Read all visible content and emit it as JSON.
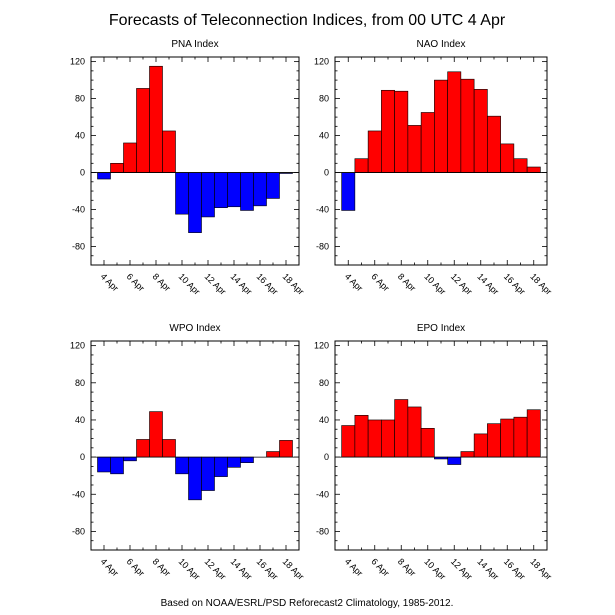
{
  "figure": {
    "title": "Forecasts of Teleconnection Indices, from 00 UTC 4 Apr",
    "footer": "Based on NOAA/ESRL/PSD Reforecast2 Climatology, 1985-2012.",
    "positive_color": "#ff0000",
    "negative_color": "#0000ff"
  },
  "chart_data": [
    {
      "type": "bar",
      "title": "PNA Index",
      "x": [
        4,
        5,
        6,
        7,
        8,
        9,
        10,
        11,
        12,
        13,
        14,
        15,
        16,
        17,
        18
      ],
      "x_tick_labels": [
        "4 Apr",
        "6 Apr",
        "8 Apr",
        "10 Apr",
        "12 Apr",
        "14 Apr",
        "16 Apr",
        "18 Apr"
      ],
      "values": [
        -7,
        10,
        32,
        91,
        115,
        45,
        -45,
        -65,
        -48,
        -38,
        -37,
        -41,
        -36,
        -28,
        -1
      ],
      "ylim": [
        -100,
        125
      ],
      "y_ticks": [
        -80,
        -40,
        0,
        40,
        80,
        120
      ],
      "grid": false
    },
    {
      "type": "bar",
      "title": "NAO Index",
      "x": [
        4,
        5,
        6,
        7,
        8,
        9,
        10,
        11,
        12,
        13,
        14,
        15,
        16,
        17,
        18
      ],
      "x_tick_labels": [
        "4 Apr",
        "6 Apr",
        "8 Apr",
        "10 Apr",
        "12 Apr",
        "14 Apr",
        "16 Apr",
        "18 Apr"
      ],
      "values": [
        -41,
        15,
        45,
        89,
        88,
        51,
        65,
        100,
        109,
        101,
        90,
        61,
        31,
        15,
        6
      ],
      "ylim": [
        -100,
        125
      ],
      "y_ticks": [
        -80,
        -40,
        0,
        40,
        80,
        120
      ],
      "grid": false
    },
    {
      "type": "bar",
      "title": "WPO Index",
      "x": [
        4,
        5,
        6,
        7,
        8,
        9,
        10,
        11,
        12,
        13,
        14,
        15,
        16,
        17,
        18
      ],
      "x_tick_labels": [
        "4 Apr",
        "6 Apr",
        "8 Apr",
        "10 Apr",
        "12 Apr",
        "14 Apr",
        "16 Apr",
        "18 Apr"
      ],
      "values": [
        -16,
        -18,
        -4,
        19,
        49,
        19,
        -18,
        -46,
        -36,
        -21,
        -11,
        -6,
        0,
        6,
        18
      ],
      "ylim": [
        -100,
        125
      ],
      "y_ticks": [
        -80,
        -40,
        0,
        40,
        80,
        120
      ],
      "grid": false
    },
    {
      "type": "bar",
      "title": "EPO Index",
      "x": [
        4,
        5,
        6,
        7,
        8,
        9,
        10,
        11,
        12,
        13,
        14,
        15,
        16,
        17,
        18
      ],
      "x_tick_labels": [
        "4 Apr",
        "6 Apr",
        "8 Apr",
        "10 Apr",
        "12 Apr",
        "14 Apr",
        "16 Apr",
        "18 Apr"
      ],
      "values": [
        34,
        45,
        40,
        40,
        62,
        54,
        31,
        -2,
        -8,
        6,
        25,
        36,
        41,
        43,
        51
      ],
      "ylim": [
        -100,
        125
      ],
      "y_ticks": [
        -80,
        -40,
        0,
        40,
        80,
        120
      ],
      "grid": false
    }
  ]
}
